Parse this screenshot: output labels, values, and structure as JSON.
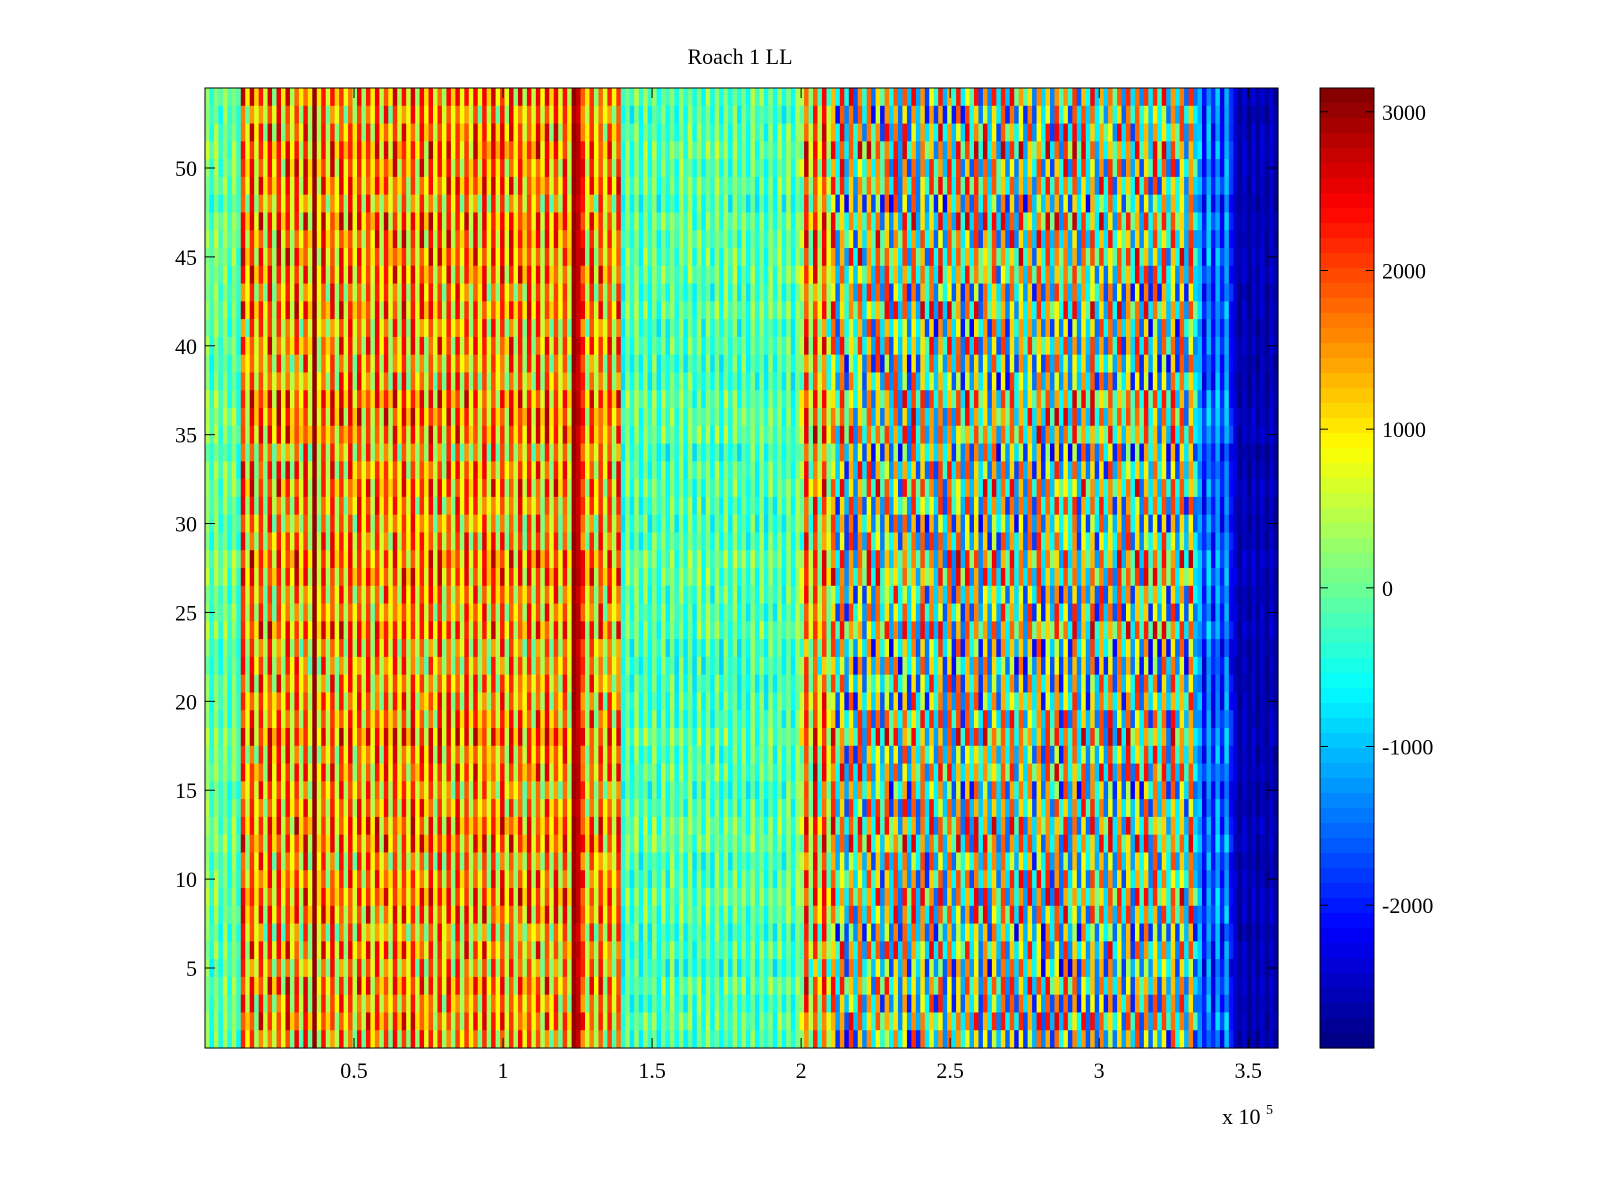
{
  "chart_data": {
    "type": "heatmap",
    "title": "Roach 1 LL",
    "xlabel": "",
    "ylabel": "",
    "x_multiplier_label": "x 10",
    "x_multiplier_exponent": "5",
    "xlim": [
      0,
      3.6
    ],
    "ylim": [
      0.5,
      54.5
    ],
    "x_ticks": [
      0.5,
      1,
      1.5,
      2,
      2.5,
      3,
      3.5
    ],
    "x_tick_labels": [
      "0.5",
      "1",
      "1.5",
      "2",
      "2.5",
      "3",
      "3.5"
    ],
    "y_ticks": [
      5,
      10,
      15,
      20,
      25,
      30,
      35,
      40,
      45,
      50
    ],
    "y_tick_labels": [
      "5",
      "10",
      "15",
      "20",
      "25",
      "30",
      "35",
      "40",
      "45",
      "50"
    ],
    "colorbar": {
      "colormap": "jet",
      "range": [
        -2900,
        3150
      ],
      "ticks": [
        3000,
        2000,
        1000,
        0,
        -1000,
        -2000
      ],
      "tick_labels": [
        "3000",
        "2000",
        "1000",
        "0",
        "-1000",
        "-2000"
      ]
    },
    "rows": 54,
    "columns_description": "vertical stripes alternating per column",
    "column_band_levels": [
      {
        "x_from": 0.0,
        "x_to": 0.12,
        "low": -700,
        "high": 600
      },
      {
        "x_from": 0.12,
        "x_to": 0.36,
        "low": -300,
        "high": 3000
      },
      {
        "x_from": 0.36,
        "x_to": 0.38,
        "low": 2800,
        "high": 3100
      },
      {
        "x_from": 0.38,
        "x_to": 1.23,
        "low": -200,
        "high": 2900
      },
      {
        "x_from": 1.23,
        "x_to": 1.26,
        "low": 2600,
        "high": 3100
      },
      {
        "x_from": 1.26,
        "x_to": 1.4,
        "low": -300,
        "high": 2800
      },
      {
        "x_from": 1.4,
        "x_to": 2.0,
        "low": -900,
        "high": 600
      },
      {
        "x_from": 2.0,
        "x_to": 2.1,
        "low": -800,
        "high": 3000
      },
      {
        "x_from": 2.1,
        "x_to": 3.33,
        "low": -2300,
        "high": 2800
      },
      {
        "x_from": 3.33,
        "x_to": 3.45,
        "low": -2500,
        "high": -700
      },
      {
        "x_from": 3.45,
        "x_to": 3.6,
        "low": -2900,
        "high": -2300
      }
    ]
  }
}
